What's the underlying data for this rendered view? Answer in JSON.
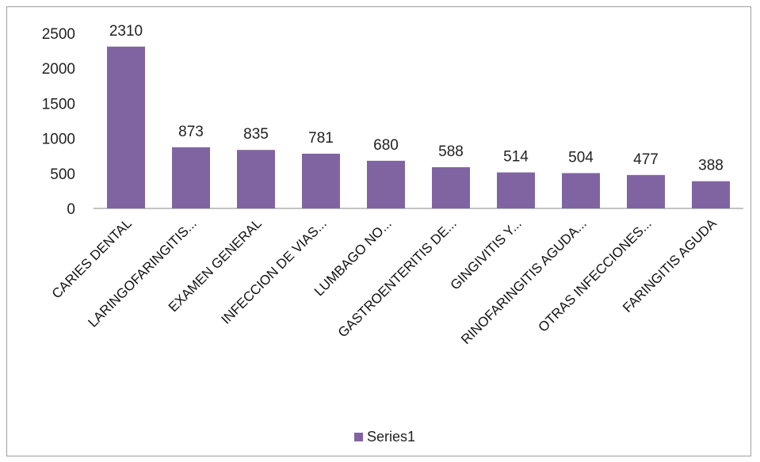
{
  "chart_data": {
    "type": "bar",
    "categories": [
      "CARIES DENTAL",
      "LARINGOFARINGITIS...",
      "EXAMEN GENERAL",
      "INFECCION DE VIAS...",
      "LUMBAGO NO...",
      "GASTROENTERITIS DE...",
      "GINGIVITIS Y...",
      "RINOFARINGITIS AGUDA...",
      "OTRAS INFECCIONES...",
      "FARINGITIS AGUDA"
    ],
    "series": [
      {
        "name": "Series1",
        "values": [
          2310,
          873,
          835,
          781,
          680,
          588,
          514,
          504,
          477,
          388
        ]
      }
    ],
    "ylim": [
      0,
      2500
    ],
    "yticks": [
      0,
      500,
      1000,
      1500,
      2000,
      2500
    ],
    "data_labels": true,
    "grid": false,
    "legend": "bottom",
    "colors": {
      "bar": "#8064a2",
      "axis": "#888888"
    }
  }
}
